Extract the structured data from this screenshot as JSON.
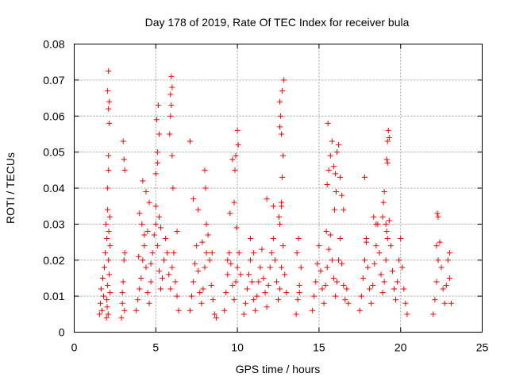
{
  "chart_data": {
    "type": "scatter",
    "title": "Day 178 of 2019, Rate Of TEC Index for receiver bula",
    "xlabel": "GPS time / hours",
    "ylabel": "ROTI / TECUs",
    "xlim": [
      0,
      25
    ],
    "ylim": [
      0,
      0.08
    ],
    "x_ticks": [
      0,
      5,
      10,
      15,
      20,
      25
    ],
    "x_tick_labels": [
      "0",
      "5",
      "10",
      "15",
      "20",
      "25"
    ],
    "y_ticks": [
      0,
      0.01,
      0.02,
      0.03,
      0.04,
      0.05,
      0.06,
      0.07,
      0.08
    ],
    "y_tick_labels": [
      "0",
      "0.01",
      "0.02",
      "0.03",
      "0.04",
      "0.05",
      "0.06",
      "0.07",
      "0.08"
    ],
    "grid": true,
    "marker": "plus",
    "marker_color": "#ff0000",
    "series": [
      {
        "x": [
          1.55,
          1.6,
          1.65,
          1.7,
          1.75,
          1.8,
          1.85,
          1.9,
          1.95,
          2.0,
          2.05,
          2.1,
          2.15,
          2.2,
          2.05,
          2.1,
          2.1,
          2.15,
          2.1,
          2.05,
          2.15,
          2.1,
          2.05,
          2.0,
          2.12,
          2.18,
          2.2,
          1.98,
          2.02,
          2.08,
          2.9,
          2.95,
          3.0,
          3.05,
          3.1,
          3.05,
          3.0,
          3.1,
          2.95,
          3.08,
          3.8,
          3.9,
          4.0,
          4.1,
          4.2,
          4.3,
          4.4,
          4.5,
          4.6,
          4.7,
          4.8,
          4.9,
          5.0,
          5.1,
          5.2,
          5.3,
          5.4,
          5.5,
          5.6,
          5.7,
          5.8,
          5.9,
          6.0,
          6.1,
          6.2,
          6.3,
          6.4,
          4.0,
          4.2,
          4.4,
          4.6,
          5.0,
          5.1,
          5.2,
          5.05,
          5.15,
          5.1,
          5.0,
          5.2,
          5.3,
          5.95,
          6.0,
          5.9,
          5.85,
          5.9,
          6.0,
          5.95,
          6.05,
          4.15,
          4.3,
          3.95,
          4.5,
          4.7,
          6.3,
          7.1,
          7.2,
          7.3,
          7.4,
          7.5,
          7.6,
          7.7,
          7.8,
          7.9,
          8.0,
          8.1,
          8.2,
          8.3,
          8.4,
          8.5,
          8.6,
          8.7,
          7.6,
          8.0,
          8.05,
          7.85,
          8.1,
          8.45,
          7.3,
          7.1,
          9.2,
          9.3,
          9.4,
          9.5,
          9.6,
          9.7,
          9.8,
          9.9,
          10.0,
          10.1,
          10.2,
          9.8,
          9.7,
          9.9,
          10.0,
          10.05,
          9.85,
          9.4,
          9.55,
          9.95,
          10.4,
          10.5,
          10.6,
          10.7,
          10.8,
          10.9,
          11.0,
          11.1,
          11.2,
          11.3,
          11.4,
          11.5,
          11.6,
          11.7,
          11.8,
          11.9,
          12.0,
          12.1,
          12.2,
          12.3,
          12.4,
          12.5,
          12.6,
          12.7,
          12.8,
          12.9,
          13.0,
          12.6,
          12.7,
          12.75,
          12.8,
          12.7,
          12.65,
          12.6,
          12.75,
          12.85,
          12.6,
          12.7,
          12.55,
          11.8,
          12.2,
          10.8,
          11.0,
          13.6,
          13.7,
          13.8,
          13.9,
          13.75,
          13.65,
          13.8,
          14.6,
          14.7,
          14.8,
          14.9,
          15.0,
          15.1,
          15.2,
          15.3,
          15.4,
          15.5,
          15.6,
          15.7,
          15.8,
          15.9,
          16.0,
          16.1,
          16.2,
          16.3,
          16.4,
          16.5,
          16.6,
          16.7,
          16.8,
          15.5,
          15.6,
          15.7,
          15.8,
          15.9,
          16.0,
          16.1,
          16.2,
          15.55,
          15.95,
          16.05,
          16.3,
          16.4,
          16.5,
          15.45,
          17.5,
          17.6,
          17.7,
          17.8,
          17.9,
          18.0,
          18.1,
          18.2,
          18.3,
          18.4,
          18.5,
          18.6,
          18.7,
          18.8,
          18.9,
          19.0,
          19.1,
          19.2,
          19.3,
          19.4,
          19.5,
          19.6,
          19.7,
          19.8,
          19.9,
          20.0,
          20.1,
          20.2,
          20.3,
          20.4,
          19.15,
          19.2,
          19.25,
          19.3,
          19.2,
          18.9,
          18.95,
          19.0,
          19.1,
          19.15,
          17.8,
          18.35,
          18.5,
          17.9,
          22.0,
          22.1,
          22.2,
          22.3,
          22.4,
          22.5,
          22.6,
          22.7,
          22.8,
          22.9,
          23.0,
          23.1,
          22.3,
          22.25,
          23.0,
          22.2
        ],
        "y": [
          0.005,
          0.008,
          0.012,
          0.006,
          0.015,
          0.01,
          0.018,
          0.022,
          0.03,
          0.026,
          0.034,
          0.02,
          0.016,
          0.024,
          0.04,
          0.045,
          0.049,
          0.058,
          0.062,
          0.067,
          0.064,
          0.0725,
          0.013,
          0.009,
          0.028,
          0.032,
          0.011,
          0.004,
          0.007,
          0.005,
          0.004,
          0.008,
          0.014,
          0.02,
          0.022,
          0.048,
          0.053,
          0.045,
          0.011,
          0.006,
          0.006,
          0.009,
          0.012,
          0.015,
          0.02,
          0.024,
          0.018,
          0.011,
          0.008,
          0.014,
          0.022,
          0.027,
          0.03,
          0.024,
          0.017,
          0.012,
          0.015,
          0.02,
          0.026,
          0.022,
          0.016,
          0.012,
          0.018,
          0.022,
          0.014,
          0.01,
          0.006,
          0.033,
          0.042,
          0.039,
          0.036,
          0.044,
          0.05,
          0.055,
          0.059,
          0.063,
          0.047,
          0.035,
          0.032,
          0.029,
          0.071,
          0.068,
          0.06,
          0.055,
          0.066,
          0.049,
          0.063,
          0.04,
          0.03,
          0.027,
          0.021,
          0.028,
          0.019,
          0.028,
          0.006,
          0.01,
          0.014,
          0.019,
          0.024,
          0.017,
          0.011,
          0.008,
          0.012,
          0.018,
          0.022,
          0.027,
          0.02,
          0.013,
          0.009,
          0.005,
          0.004,
          0.034,
          0.045,
          0.04,
          0.025,
          0.03,
          0.022,
          0.037,
          0.053,
          0.006,
          0.011,
          0.016,
          0.022,
          0.019,
          0.013,
          0.009,
          0.014,
          0.018,
          0.022,
          0.016,
          0.036,
          0.048,
          0.049,
          0.056,
          0.052,
          0.045,
          0.02,
          0.033,
          0.029,
          0.005,
          0.008,
          0.012,
          0.016,
          0.02,
          0.014,
          0.009,
          0.006,
          0.01,
          0.014,
          0.018,
          0.023,
          0.015,
          0.011,
          0.007,
          0.013,
          0.018,
          0.022,
          0.026,
          0.02,
          0.014,
          0.009,
          0.012,
          0.018,
          0.024,
          0.016,
          0.011,
          0.03,
          0.036,
          0.043,
          0.049,
          0.055,
          0.06,
          0.064,
          0.067,
          0.07,
          0.057,
          0.035,
          0.032,
          0.037,
          0.035,
          0.026,
          0.022,
          0.005,
          0.009,
          0.013,
          0.018,
          0.026,
          0.022,
          0.011,
          0.006,
          0.01,
          0.014,
          0.019,
          0.024,
          0.017,
          0.012,
          0.008,
          0.013,
          0.018,
          0.023,
          0.027,
          0.02,
          0.015,
          0.01,
          0.014,
          0.02,
          0.026,
          0.019,
          0.013,
          0.009,
          0.012,
          0.008,
          0.041,
          0.045,
          0.049,
          0.053,
          0.046,
          0.044,
          0.05,
          0.052,
          0.058,
          0.034,
          0.039,
          0.043,
          0.038,
          0.034,
          0.028,
          0.006,
          0.01,
          0.015,
          0.02,
          0.025,
          0.018,
          0.012,
          0.008,
          0.013,
          0.019,
          0.024,
          0.03,
          0.022,
          0.016,
          0.011,
          0.014,
          0.02,
          0.026,
          0.031,
          0.024,
          0.017,
          0.012,
          0.009,
          0.014,
          0.02,
          0.026,
          0.018,
          0.012,
          0.008,
          0.005,
          0.048,
          0.053,
          0.056,
          0.054,
          0.047,
          0.032,
          0.036,
          0.039,
          0.03,
          0.028,
          0.043,
          0.032,
          0.03,
          0.026,
          0.005,
          0.009,
          0.014,
          0.02,
          0.025,
          0.018,
          0.012,
          0.008,
          0.013,
          0.02,
          0.015,
          0.008,
          0.032,
          0.033,
          0.022,
          0.024
        ]
      }
    ]
  }
}
